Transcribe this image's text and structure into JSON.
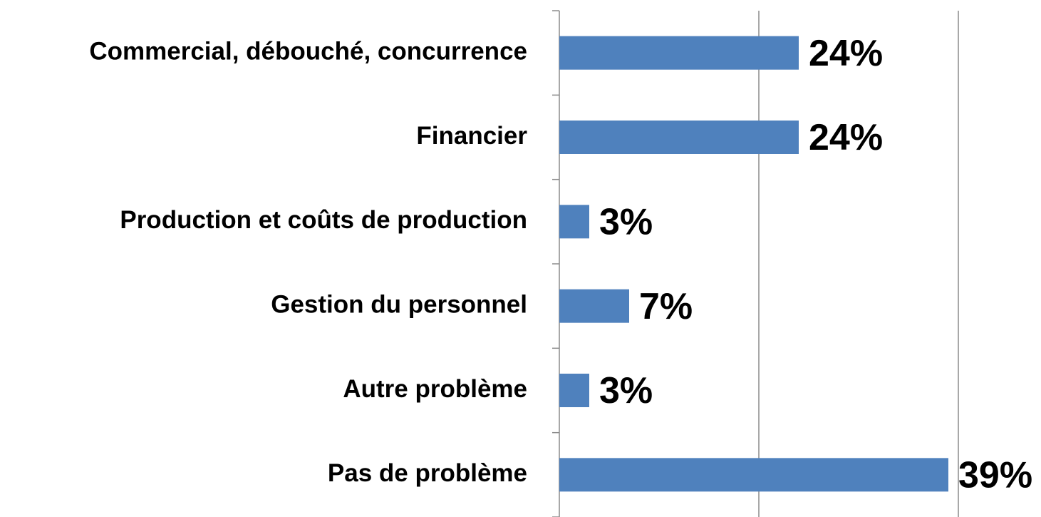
{
  "chart_data": {
    "type": "barh",
    "categories": [
      "Commercial, débouché, concurrence",
      "Financier",
      "Production et coûts de production",
      "Gestion du personnel",
      "Autre problème",
      "Pas de problème"
    ],
    "values": [
      24,
      24,
      3,
      7,
      3,
      39
    ],
    "value_labels": [
      "24%",
      "24%",
      "3%",
      "7%",
      "3%",
      "39%"
    ],
    "color": "#4f81bd",
    "xlim": [
      0,
      40
    ],
    "xticks": [
      0,
      20,
      40
    ],
    "grid": true
  }
}
